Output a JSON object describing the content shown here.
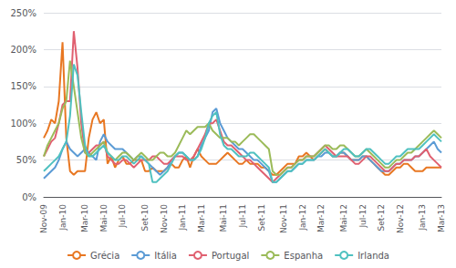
{
  "chart_data": {
    "type": "line",
    "categories": [
      "Nov-09",
      null,
      null,
      null,
      null,
      "Jan-10",
      null,
      null,
      null,
      null,
      null,
      "Mar-10",
      null,
      null,
      null,
      null,
      "Mai-10",
      null,
      null,
      null,
      null,
      "Jul-10",
      null,
      null,
      null,
      null,
      null,
      "Set-10",
      null,
      null,
      null,
      null,
      "Nov-10",
      null,
      null,
      null,
      null,
      "Jan-11",
      null,
      null,
      null,
      null,
      "Mar-11",
      null,
      null,
      null,
      null,
      null,
      "Mai-11",
      null,
      null,
      null,
      null,
      "Jul-11",
      null,
      null,
      null,
      null,
      "Set-11",
      null,
      null,
      null,
      null,
      null,
      "Nov-11",
      null,
      null,
      null,
      null,
      "Jan-12",
      null,
      null,
      null,
      null,
      "Mar-12",
      null,
      null,
      null,
      null,
      null,
      "Mai-12",
      null,
      null,
      null,
      null,
      "Jul-12",
      null,
      null,
      null,
      null,
      "Set-12",
      null,
      null,
      null,
      null,
      "Nov-12",
      null,
      null,
      null,
      null,
      null,
      "Jan-13",
      null,
      null,
      null,
      null,
      "Mar-13"
    ],
    "series": [
      {
        "name": "Grécia",
        "color": "#E87722",
        "values": [
          80,
          90,
          105,
          100,
          130,
          210,
          80,
          35,
          30,
          35,
          35,
          35,
          80,
          105,
          115,
          100,
          105,
          45,
          55,
          40,
          50,
          55,
          45,
          45,
          50,
          50,
          50,
          35,
          35,
          40,
          35,
          35,
          35,
          40,
          45,
          40,
          40,
          50,
          55,
          40,
          55,
          65,
          55,
          50,
          45,
          45,
          45,
          50,
          55,
          60,
          55,
          50,
          45,
          45,
          50,
          45,
          45,
          45,
          40,
          40,
          35,
          30,
          30,
          35,
          40,
          45,
          45,
          45,
          55,
          55,
          60,
          55,
          50,
          55,
          60,
          65,
          60,
          55,
          55,
          60,
          60,
          55,
          50,
          50,
          50,
          55,
          55,
          50,
          45,
          40,
          35,
          30,
          30,
          35,
          40,
          40,
          45,
          45,
          40,
          35,
          35,
          35,
          40,
          40,
          40,
          40,
          40
        ]
      },
      {
        "name": "Itália",
        "color": "#5B9BD5",
        "values": [
          25,
          30,
          35,
          40,
          50,
          65,
          75,
          65,
          60,
          55,
          60,
          65,
          60,
          55,
          50,
          75,
          85,
          75,
          70,
          65,
          65,
          65,
          60,
          55,
          50,
          55,
          55,
          50,
          45,
          40,
          35,
          30,
          35,
          40,
          50,
          55,
          60,
          60,
          55,
          50,
          50,
          55,
          70,
          80,
          90,
          115,
          120,
          100,
          90,
          80,
          75,
          70,
          65,
          65,
          60,
          55,
          50,
          50,
          45,
          40,
          35,
          20,
          20,
          25,
          30,
          35,
          35,
          40,
          45,
          45,
          50,
          50,
          50,
          55,
          55,
          60,
          60,
          55,
          55,
          60,
          60,
          55,
          50,
          50,
          50,
          55,
          55,
          50,
          45,
          40,
          35,
          35,
          35,
          40,
          45,
          45,
          50,
          50,
          50,
          55,
          55,
          60,
          65,
          70,
          75,
          65,
          60
        ]
      },
      {
        "name": "Portugal",
        "color": "#E06070",
        "values": [
          55,
          65,
          75,
          80,
          100,
          125,
          130,
          130,
          225,
          175,
          100,
          60,
          60,
          65,
          70,
          70,
          75,
          55,
          50,
          45,
          45,
          50,
          50,
          45,
          40,
          45,
          50,
          50,
          50,
          55,
          55,
          50,
          45,
          45,
          50,
          55,
          55,
          55,
          50,
          50,
          55,
          65,
          75,
          85,
          100,
          100,
          105,
          90,
          75,
          70,
          70,
          65,
          60,
          55,
          50,
          50,
          45,
          40,
          35,
          30,
          25,
          20,
          25,
          30,
          35,
          40,
          40,
          45,
          50,
          50,
          55,
          55,
          55,
          60,
          65,
          70,
          65,
          60,
          55,
          55,
          55,
          55,
          50,
          45,
          45,
          50,
          55,
          55,
          50,
          45,
          40,
          35,
          35,
          40,
          45,
          45,
          50,
          50,
          50,
          55,
          55,
          60,
          65,
          55,
          50,
          45,
          40
        ]
      },
      {
        "name": "Espanha",
        "color": "#9BBB59",
        "values": [
          55,
          70,
          80,
          90,
          100,
          120,
          130,
          185,
          150,
          115,
          80,
          60,
          55,
          60,
          65,
          70,
          75,
          60,
          55,
          50,
          55,
          60,
          60,
          55,
          50,
          55,
          60,
          55,
          50,
          50,
          55,
          60,
          60,
          55,
          55,
          60,
          70,
          80,
          90,
          85,
          90,
          95,
          95,
          95,
          100,
          90,
          85,
          80,
          80,
          80,
          75,
          75,
          70,
          75,
          80,
          85,
          85,
          80,
          75,
          70,
          65,
          35,
          30,
          30,
          35,
          40,
          40,
          45,
          50,
          50,
          55,
          55,
          55,
          60,
          65,
          70,
          70,
          65,
          65,
          70,
          70,
          65,
          60,
          55,
          55,
          60,
          65,
          60,
          55,
          50,
          45,
          40,
          40,
          45,
          50,
          50,
          55,
          60,
          60,
          65,
          70,
          75,
          80,
          85,
          90,
          85,
          80
        ]
      },
      {
        "name": "Irlanda",
        "color": "#4FC1C0",
        "values": [
          35,
          40,
          45,
          50,
          55,
          65,
          75,
          110,
          180,
          165,
          115,
          70,
          55,
          55,
          60,
          65,
          70,
          60,
          55,
          50,
          50,
          55,
          55,
          50,
          45,
          50,
          55,
          50,
          45,
          20,
          20,
          25,
          30,
          35,
          45,
          55,
          60,
          60,
          55,
          50,
          50,
          55,
          65,
          80,
          100,
          110,
          115,
          85,
          70,
          65,
          65,
          60,
          55,
          55,
          55,
          60,
          60,
          55,
          50,
          45,
          40,
          20,
          20,
          25,
          30,
          35,
          35,
          40,
          45,
          45,
          50,
          50,
          50,
          55,
          60,
          65,
          60,
          55,
          55,
          60,
          65,
          65,
          60,
          55,
          55,
          60,
          65,
          65,
          60,
          55,
          50,
          45,
          45,
          50,
          55,
          55,
          60,
          65,
          65,
          65,
          65,
          70,
          75,
          80,
          85,
          80,
          75
        ]
      }
    ],
    "ylim": [
      0,
      250
    ],
    "yticks": [
      {
        "value": 0,
        "label": "0%"
      },
      {
        "value": 50,
        "label": "50%"
      },
      {
        "value": 100,
        "label": "100%"
      },
      {
        "value": 150,
        "label": "150%"
      },
      {
        "value": 200,
        "label": "200%"
      },
      {
        "value": 250,
        "label": "250%"
      }
    ],
    "grid": true,
    "legend": "bottom"
  }
}
